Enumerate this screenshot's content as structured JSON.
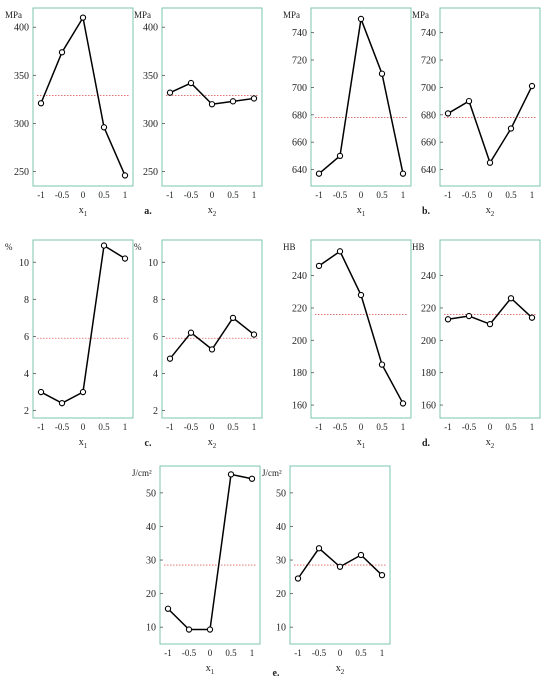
{
  "chart_data": [
    {
      "id": "a1",
      "group": "a",
      "type": "line",
      "unit": "MPa",
      "xlabel": "x1",
      "categories": [
        "-1",
        "-0.5",
        "0",
        "0.5",
        "1"
      ],
      "values": [
        321,
        374,
        410,
        296,
        246
      ],
      "mean": 329,
      "ylim": [
        235,
        420
      ],
      "yticks": [
        250,
        300,
        350,
        400
      ],
      "series_color": "#000000",
      "mean_line_color": "#e06060",
      "frame_color": "#7cc4b2"
    },
    {
      "id": "a2",
      "group": "a",
      "type": "line",
      "unit": "MPa",
      "xlabel": "x2",
      "categories": [
        "-1",
        "-0.5",
        "0",
        "0.5",
        "1"
      ],
      "values": [
        332,
        342,
        320,
        323,
        326
      ],
      "mean": 329,
      "ylim": [
        235,
        420
      ],
      "yticks": [
        250,
        300,
        350,
        400
      ],
      "series_color": "#000000",
      "mean_line_color": "#e06060",
      "frame_color": "#7cc4b2"
    },
    {
      "id": "b1",
      "group": "b",
      "type": "line",
      "unit": "MPa",
      "xlabel": "x1",
      "categories": [
        "-1",
        "-0.5",
        "0",
        "0.5",
        "1"
      ],
      "values": [
        637,
        650,
        750,
        710,
        637
      ],
      "mean": 678,
      "ylim": [
        628,
        758
      ],
      "yticks": [
        640,
        660,
        680,
        700,
        720,
        740
      ],
      "series_color": "#000000",
      "mean_line_color": "#e06060",
      "frame_color": "#7cc4b2"
    },
    {
      "id": "b2",
      "group": "b",
      "type": "line",
      "unit": "MPa",
      "xlabel": "x2",
      "categories": [
        "-1",
        "-0.5",
        "0",
        "0.5",
        "1"
      ],
      "values": [
        681,
        690,
        645,
        670,
        701
      ],
      "mean": 678,
      "ylim": [
        628,
        758
      ],
      "yticks": [
        640,
        660,
        680,
        700,
        720,
        740
      ],
      "series_color": "#000000",
      "mean_line_color": "#e06060",
      "frame_color": "#7cc4b2"
    },
    {
      "id": "c1",
      "group": "c",
      "type": "line",
      "unit": "%",
      "xlabel": "x1",
      "categories": [
        "-1",
        "-0.5",
        "0",
        "0.5",
        "1"
      ],
      "values": [
        3.0,
        2.4,
        3.0,
        10.9,
        10.2
      ],
      "mean": 5.9,
      "ylim": [
        1.6,
        11.2
      ],
      "yticks": [
        2.0,
        4.0,
        6.0,
        8.0,
        10.0
      ],
      "series_color": "#000000",
      "mean_line_color": "#e06060",
      "frame_color": "#7cc4b2"
    },
    {
      "id": "c2",
      "group": "c",
      "type": "line",
      "unit": "%",
      "xlabel": "x2",
      "categories": [
        "-1",
        "-0.5",
        "0",
        "0.5",
        "1"
      ],
      "values": [
        4.8,
        6.2,
        5.3,
        7.0,
        6.1
      ],
      "mean": 5.9,
      "ylim": [
        1.6,
        11.2
      ],
      "yticks": [
        2.0,
        4.0,
        6.0,
        8.0,
        10.0
      ],
      "series_color": "#000000",
      "mean_line_color": "#e06060",
      "frame_color": "#7cc4b2"
    },
    {
      "id": "d1",
      "group": "d",
      "type": "line",
      "unit": "HB",
      "xlabel": "x1",
      "categories": [
        "-1",
        "-0.5",
        "0",
        "0.5",
        "1"
      ],
      "values": [
        246,
        255,
        228,
        185,
        161
      ],
      "mean": 216,
      "ylim": [
        152,
        262
      ],
      "yticks": [
        160,
        180,
        200,
        220,
        240
      ],
      "series_color": "#000000",
      "mean_line_color": "#e06060",
      "frame_color": "#7cc4b2"
    },
    {
      "id": "d2",
      "group": "d",
      "type": "line",
      "unit": "HB",
      "xlabel": "x2",
      "categories": [
        "-1",
        "-0.5",
        "0",
        "0.5",
        "1"
      ],
      "values": [
        213,
        215,
        210,
        226,
        214
      ],
      "mean": 216,
      "ylim": [
        152,
        262
      ],
      "yticks": [
        160,
        180,
        200,
        220,
        240
      ],
      "series_color": "#000000",
      "mean_line_color": "#e06060",
      "frame_color": "#7cc4b2"
    },
    {
      "id": "e1",
      "group": "e",
      "type": "line",
      "unit": "J/cm²",
      "xlabel": "x1",
      "categories": [
        "-1",
        "-0.5",
        "0",
        "0.5",
        "1"
      ],
      "values": [
        15.5,
        9.3,
        9.3,
        55.5,
        54.2
      ],
      "mean": 28.5,
      "ylim": [
        5,
        58
      ],
      "yticks": [
        10,
        20,
        30,
        40,
        50
      ],
      "series_color": "#000000",
      "mean_line_color": "#e06060",
      "frame_color": "#7cc4b2"
    },
    {
      "id": "e2",
      "group": "e",
      "type": "line",
      "unit": "J/cm²",
      "xlabel": "x2",
      "categories": [
        "-1",
        "-0.5",
        "0",
        "0.5",
        "1"
      ],
      "values": [
        24.5,
        33.5,
        28.0,
        31.5,
        25.5
      ],
      "mean": 28.5,
      "ylim": [
        5,
        58
      ],
      "yticks": [
        10,
        20,
        30,
        40,
        50
      ],
      "series_color": "#000000",
      "mean_line_color": "#e06060",
      "frame_color": "#7cc4b2"
    }
  ],
  "captions": [
    {
      "group": "a",
      "text": "a."
    },
    {
      "group": "b",
      "text": "b."
    },
    {
      "group": "c",
      "text": "c."
    },
    {
      "group": "d",
      "text": "d."
    },
    {
      "group": "e",
      "text": "e."
    }
  ]
}
